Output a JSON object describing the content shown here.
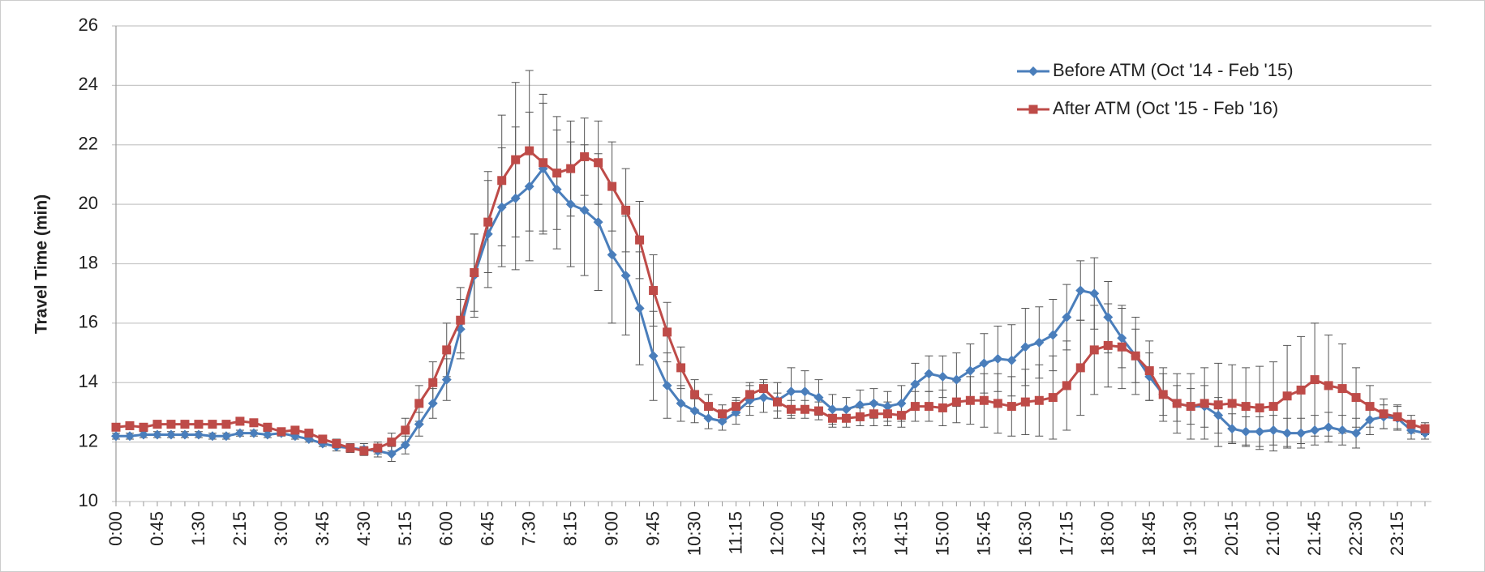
{
  "chart_data": {
    "type": "line",
    "y_label": "Travel Time (min)",
    "categories": [
      "0:00",
      null,
      null,
      "0:45",
      null,
      null,
      "1:30",
      null,
      null,
      "2:15",
      null,
      null,
      "3:00",
      null,
      null,
      "3:45",
      null,
      null,
      "4:30",
      null,
      null,
      "5:15",
      null,
      null,
      "6:00",
      null,
      null,
      "6:45",
      null,
      null,
      "7:30",
      null,
      null,
      "8:15",
      null,
      null,
      "9:00",
      null,
      null,
      "9:45",
      null,
      null,
      "10:30",
      null,
      null,
      "11:15",
      null,
      null,
      "12:00",
      null,
      null,
      "12:45",
      null,
      null,
      "13:30",
      null,
      null,
      "14:15",
      null,
      null,
      "15:00",
      null,
      null,
      "15:45",
      null,
      null,
      "16:30",
      null,
      null,
      "17:15",
      null,
      null,
      "18:00",
      null,
      null,
      "18:45",
      null,
      null,
      "19:30",
      null,
      null,
      "20:15",
      null,
      null,
      "21:00",
      null,
      null,
      "21:45",
      null,
      null,
      "22:30",
      null,
      null,
      "23:15",
      null,
      null
    ],
    "series": [
      {
        "name": "Before ATM (Oct '14 - Feb '15)",
        "color": "#4a7ebb",
        "marker": "diamond",
        "values": [
          12.2,
          12.2,
          12.25,
          12.25,
          12.25,
          12.25,
          12.25,
          12.2,
          12.2,
          12.3,
          12.3,
          12.25,
          12.3,
          12.2,
          12.1,
          11.95,
          11.85,
          11.8,
          11.75,
          11.7,
          11.6,
          11.9,
          12.6,
          13.3,
          14.1,
          15.8,
          17.6,
          19.0,
          19.9,
          20.2,
          20.6,
          21.2,
          20.5,
          20.0,
          19.8,
          19.4,
          18.3,
          17.6,
          16.5,
          14.9,
          13.9,
          13.3,
          13.05,
          12.8,
          12.7,
          13.0,
          13.4,
          13.5,
          13.4,
          13.7,
          13.7,
          13.5,
          13.1,
          13.1,
          13.25,
          13.3,
          13.2,
          13.3,
          13.95,
          14.3,
          14.2,
          14.1,
          14.4,
          14.65,
          14.8,
          14.75,
          15.2,
          15.35,
          15.6,
          16.2,
          17.1,
          17.0,
          16.2,
          15.5,
          14.9,
          14.2,
          13.6,
          13.3,
          13.2,
          13.2,
          12.9,
          12.45,
          12.35,
          12.35,
          12.4,
          12.3,
          12.3,
          12.4,
          12.5,
          12.4,
          12.3,
          12.75,
          12.85,
          12.8,
          12.4,
          12.3
        ],
        "errors": [
          0.1,
          0.1,
          0.1,
          0.1,
          0.1,
          0.1,
          0.1,
          0.1,
          0.1,
          0.1,
          0.1,
          0.1,
          0.1,
          0.1,
          0.1,
          0.1,
          0.15,
          0.15,
          0.2,
          0.2,
          0.25,
          0.3,
          0.4,
          0.5,
          0.7,
          1.0,
          1.4,
          1.8,
          2.0,
          2.4,
          2.5,
          2.2,
          2.0,
          2.1,
          2.2,
          2.3,
          2.3,
          2.0,
          1.9,
          1.5,
          1.1,
          0.6,
          0.4,
          0.35,
          0.3,
          0.4,
          0.5,
          0.5,
          0.6,
          0.8,
          0.7,
          0.6,
          0.5,
          0.4,
          0.5,
          0.5,
          0.5,
          0.6,
          0.7,
          0.6,
          0.7,
          0.9,
          0.9,
          1.0,
          1.1,
          1.2,
          1.3,
          1.2,
          1.2,
          1.1,
          1.0,
          1.2,
          1.2,
          1.0,
          0.9,
          0.8,
          0.7,
          0.6,
          0.6,
          0.7,
          0.6,
          0.5,
          0.5,
          0.5,
          0.5,
          0.5,
          0.5,
          0.5,
          0.5,
          0.5,
          0.5,
          0.5,
          0.4,
          0.4,
          0.3,
          0.2
        ]
      },
      {
        "name": "After ATM (Oct '15 - Feb '16)",
        "color": "#be4b48",
        "marker": "square",
        "values": [
          12.5,
          12.55,
          12.5,
          12.6,
          12.6,
          12.6,
          12.6,
          12.6,
          12.6,
          12.7,
          12.65,
          12.5,
          12.35,
          12.4,
          12.3,
          12.1,
          11.95,
          11.8,
          11.7,
          11.8,
          12.0,
          12.4,
          13.3,
          14.0,
          15.1,
          16.1,
          17.7,
          19.4,
          20.8,
          21.5,
          21.8,
          21.4,
          21.05,
          21.2,
          21.6,
          21.4,
          20.6,
          19.8,
          18.8,
          17.1,
          15.7,
          14.5,
          13.6,
          13.2,
          12.95,
          13.2,
          13.6,
          13.8,
          13.35,
          13.1,
          13.1,
          13.05,
          12.8,
          12.8,
          12.85,
          12.95,
          12.95,
          12.9,
          13.2,
          13.2,
          13.15,
          13.35,
          13.4,
          13.4,
          13.3,
          13.2,
          13.35,
          13.4,
          13.5,
          13.9,
          14.5,
          15.1,
          15.25,
          15.2,
          14.9,
          14.4,
          13.6,
          13.3,
          13.2,
          13.3,
          13.25,
          13.3,
          13.2,
          13.15,
          13.2,
          13.55,
          13.75,
          14.1,
          13.9,
          13.8,
          13.5,
          13.2,
          12.95,
          12.85,
          12.6,
          12.45
        ],
        "errors": [
          0.1,
          0.1,
          0.1,
          0.1,
          0.1,
          0.1,
          0.1,
          0.1,
          0.1,
          0.1,
          0.1,
          0.1,
          0.1,
          0.1,
          0.1,
          0.1,
          0.15,
          0.15,
          0.15,
          0.2,
          0.3,
          0.4,
          0.6,
          0.7,
          0.9,
          1.1,
          1.3,
          1.7,
          2.2,
          2.6,
          2.7,
          2.3,
          1.9,
          1.6,
          1.3,
          1.4,
          1.5,
          1.4,
          1.3,
          1.2,
          1.0,
          0.7,
          0.5,
          0.4,
          0.3,
          0.3,
          0.4,
          0.3,
          0.3,
          0.3,
          0.3,
          0.3,
          0.3,
          0.3,
          0.3,
          0.4,
          0.4,
          0.4,
          0.5,
          0.5,
          0.6,
          0.7,
          0.8,
          0.9,
          1.0,
          1.0,
          1.1,
          1.2,
          1.4,
          1.5,
          1.6,
          1.5,
          1.4,
          1.4,
          1.3,
          1.0,
          0.9,
          1.0,
          1.1,
          1.2,
          1.4,
          1.3,
          1.3,
          1.4,
          1.5,
          1.7,
          1.8,
          1.9,
          1.7,
          1.5,
          1.0,
          0.7,
          0.5,
          0.4,
          0.3,
          0.2
        ]
      }
    ],
    "ylim": [
      10,
      26
    ],
    "yticks": [
      10,
      12,
      14,
      16,
      18,
      20,
      22,
      24,
      26
    ],
    "grid": true,
    "legend": "top-right"
  }
}
